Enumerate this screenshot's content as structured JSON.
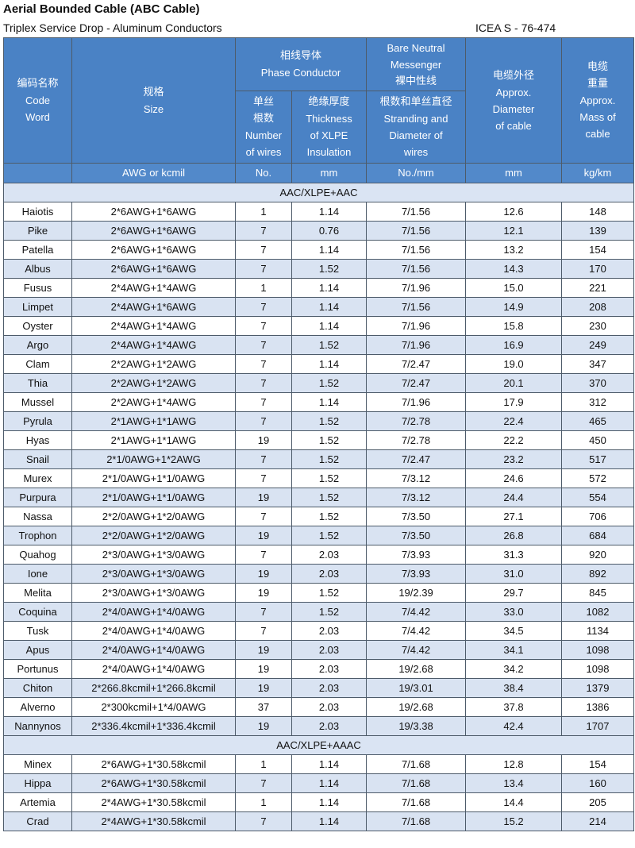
{
  "header": {
    "title": "Aerial Bounded Cable (ABC Cable)",
    "subtitle": "Triplex Service Drop - Aluminum Conductors",
    "standard": "ICEA S - 76-474"
  },
  "columns": {
    "code": [
      "编码名称",
      "Code",
      "Word"
    ],
    "size": [
      "规格",
      "Size"
    ],
    "phase": [
      "相线导体",
      "Phase Conductor"
    ],
    "num_wires": [
      "单丝",
      "根数",
      "Number",
      "of wires"
    ],
    "thickness": [
      "绝缘厚度",
      "Thickness",
      "of XLPE",
      "Insulation"
    ],
    "neutral": [
      "Bare Neutral",
      "Messenger",
      "裸中性线"
    ],
    "stranding": [
      "根数和单丝直径",
      "Stranding and",
      "Diameter of",
      "wires"
    ],
    "diameter": [
      "电缆外径",
      "Approx.",
      "Diameter",
      "of cable"
    ],
    "mass": [
      "电缆",
      "重量",
      "Approx.",
      "Mass of",
      "cable"
    ]
  },
  "units": {
    "size": "AWG or kcmil",
    "num_wires": "No.",
    "thickness": "mm",
    "stranding": "No./mm",
    "diameter": "mm",
    "mass": "kg/km"
  },
  "sections": [
    {
      "label": "AAC/XLPE+AAC",
      "rows": [
        [
          "Haiotis",
          "2*6AWG+1*6AWG",
          "1",
          "1.14",
          "7/1.56",
          "12.6",
          "148"
        ],
        [
          "Pike",
          "2*6AWG+1*6AWG",
          "7",
          "0.76",
          "7/1.56",
          "12.1",
          "139"
        ],
        [
          "Patella",
          "2*6AWG+1*6AWG",
          "7",
          "1.14",
          "7/1.56",
          "13.2",
          "154"
        ],
        [
          "Albus",
          "2*6AWG+1*6AWG",
          "7",
          "1.52",
          "7/1.56",
          "14.3",
          "170"
        ],
        [
          "Fusus",
          "2*4AWG+1*4AWG",
          "1",
          "1.14",
          "7/1.96",
          "15.0",
          "221"
        ],
        [
          "Limpet",
          "2*4AWG+1*6AWG",
          "7",
          "1.14",
          "7/1.56",
          "14.9",
          "208"
        ],
        [
          "Oyster",
          "2*4AWG+1*4AWG",
          "7",
          "1.14",
          "7/1.96",
          "15.8",
          "230"
        ],
        [
          "Argo",
          "2*4AWG+1*4AWG",
          "7",
          "1.52",
          "7/1.96",
          "16.9",
          "249"
        ],
        [
          "Clam",
          "2*2AWG+1*2AWG",
          "7",
          "1.14",
          "7/2.47",
          "19.0",
          "347"
        ],
        [
          "Thia",
          "2*2AWG+1*2AWG",
          "7",
          "1.52",
          "7/2.47",
          "20.1",
          "370"
        ],
        [
          "Mussel",
          "2*2AWG+1*4AWG",
          "7",
          "1.14",
          "7/1.96",
          "17.9",
          "312"
        ],
        [
          "Pyrula",
          "2*1AWG+1*1AWG",
          "7",
          "1.52",
          "7/2.78",
          "22.4",
          "465"
        ],
        [
          "Hyas",
          "2*1AWG+1*1AWG",
          "19",
          "1.52",
          "7/2.78",
          "22.2",
          "450"
        ],
        [
          "Snail",
          "2*1/0AWG+1*2AWG",
          "7",
          "1.52",
          "7/2.47",
          "23.2",
          "517"
        ],
        [
          "Murex",
          "2*1/0AWG+1*1/0AWG",
          "7",
          "1.52",
          "7/3.12",
          "24.6",
          "572"
        ],
        [
          "Purpura",
          "2*1/0AWG+1*1/0AWG",
          "19",
          "1.52",
          "7/3.12",
          "24.4",
          "554"
        ],
        [
          "Nassa",
          "2*2/0AWG+1*2/0AWG",
          "7",
          "1.52",
          "7/3.50",
          "27.1",
          "706"
        ],
        [
          "Trophon",
          "2*2/0AWG+1*2/0AWG",
          "19",
          "1.52",
          "7/3.50",
          "26.8",
          "684"
        ],
        [
          "Quahog",
          "2*3/0AWG+1*3/0AWG",
          "7",
          "2.03",
          "7/3.93",
          "31.3",
          "920"
        ],
        [
          "Ione",
          "2*3/0AWG+1*3/0AWG",
          "19",
          "2.03",
          "7/3.93",
          "31.0",
          "892"
        ],
        [
          "Melita",
          "2*3/0AWG+1*3/0AWG",
          "19",
          "1.52",
          "19/2.39",
          "29.7",
          "845"
        ],
        [
          "Coquina",
          "2*4/0AWG+1*4/0AWG",
          "7",
          "1.52",
          "7/4.42",
          "33.0",
          "1082"
        ],
        [
          "Tusk",
          "2*4/0AWG+1*4/0AWG",
          "7",
          "2.03",
          "7/4.42",
          "34.5",
          "1134"
        ],
        [
          "Apus",
          "2*4/0AWG+1*4/0AWG",
          "19",
          "2.03",
          "7/4.42",
          "34.1",
          "1098"
        ],
        [
          "Portunus",
          "2*4/0AWG+1*4/0AWG",
          "19",
          "2.03",
          "19/2.68",
          "34.2",
          "1098"
        ],
        [
          "Chiton",
          "2*266.8kcmil+1*266.8kcmil",
          "19",
          "2.03",
          "19/3.01",
          "38.4",
          "1379"
        ],
        [
          "Alverno",
          "2*300kcmil+1*4/0AWG",
          "37",
          "2.03",
          "19/2.68",
          "37.8",
          "1386"
        ],
        [
          "Nannynos",
          "2*336.4kcmil+1*336.4kcmil",
          "19",
          "2.03",
          "19/3.38",
          "42.4",
          "1707"
        ]
      ]
    },
    {
      "label": "AAC/XLPE+AAAC",
      "rows": [
        [
          "Minex",
          "2*6AWG+1*30.58kcmil",
          "1",
          "1.14",
          "7/1.68",
          "12.8",
          "154"
        ],
        [
          "Hippa",
          "2*6AWG+1*30.58kcmil",
          "7",
          "1.14",
          "7/1.68",
          "13.4",
          "160"
        ],
        [
          "Artemia",
          "2*4AWG+1*30.58kcmil",
          "1",
          "1.14",
          "7/1.68",
          "14.4",
          "205"
        ],
        [
          "Crad",
          "2*4AWG+1*30.58kcmil",
          "7",
          "1.14",
          "7/1.68",
          "15.2",
          "214"
        ]
      ]
    }
  ],
  "colors": {
    "header_bg": "#4a82c5",
    "alt_row": "#d9e3f2",
    "section_bg": "#dae4f3"
  }
}
